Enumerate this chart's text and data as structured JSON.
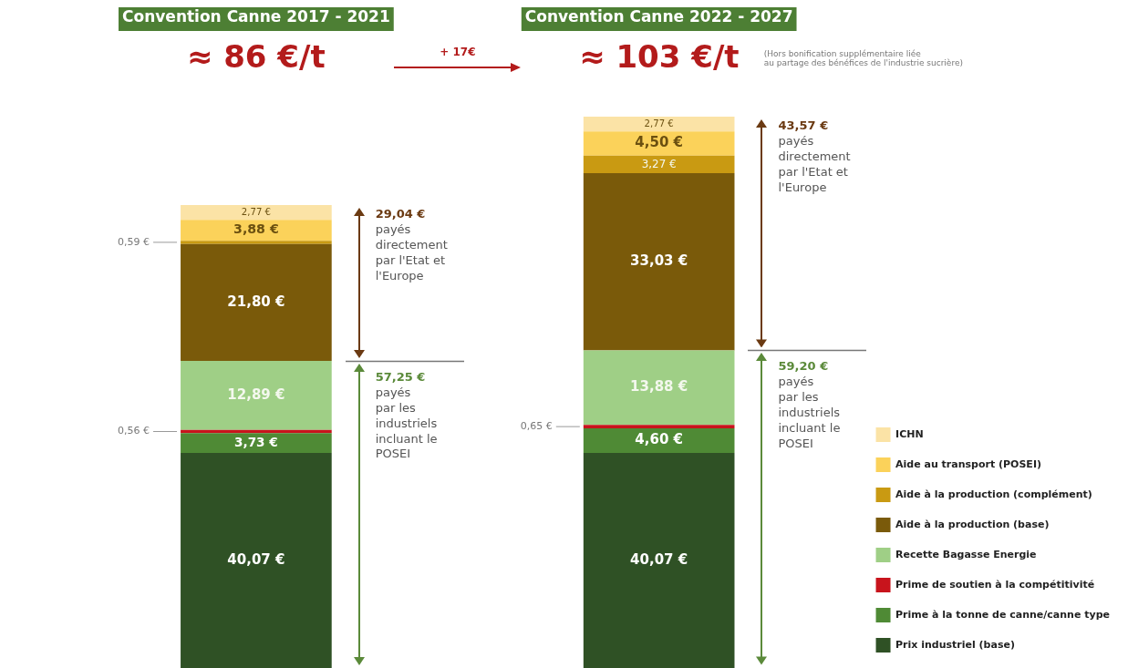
{
  "chart_data": {
    "type": "bar",
    "stacked": true,
    "legend": "bottom right",
    "categories": [
      "Convention Canne 2017 - 2021",
      "Convention Canne 2022 - 2027"
    ],
    "series": [
      {
        "name": "Prix industriel (base)",
        "color": "#2f5125",
        "values": [
          40.07,
          40.07
        ],
        "value_labels": [
          "40,07 €",
          "40,07 €"
        ]
      },
      {
        "name": "Prime à la tonne de canne/canne type",
        "color": "#4f8a35",
        "values": [
          3.73,
          4.6
        ],
        "value_labels": [
          "3,73 €",
          "4,60 €"
        ]
      },
      {
        "name": "Prime de soutien à la compétitivité",
        "color": "#c8141c",
        "values": [
          0.56,
          0.65
        ],
        "value_labels": [
          "0,56 €",
          "0,65 €"
        ]
      },
      {
        "name": "Recette Bagasse Energie",
        "color": "#9fcf86",
        "values": [
          12.89,
          13.88
        ],
        "value_labels": [
          "12,89 €",
          "13,88 €"
        ]
      },
      {
        "name": "Aide à la production (base)",
        "color": "#7a5a0a",
        "values": [
          21.8,
          33.03
        ],
        "value_labels": [
          "21,80 €",
          "33,03 €"
        ]
      },
      {
        "name": "Aide à la production (complément)",
        "color": "#c99a12",
        "values": [
          0.59,
          3.27
        ],
        "value_labels": [
          "0,59 €",
          "3,27 €"
        ]
      },
      {
        "name": "Aide au transport (POSEI)",
        "color": "#fbd25a",
        "values": [
          3.88,
          4.5
        ],
        "value_labels": [
          "3,88 €",
          "4,50 €"
        ]
      },
      {
        "name": "ICHN",
        "color": "#fbe3a6",
        "values": [
          2.77,
          2.77
        ],
        "value_labels": [
          "2,77 €",
          "2,77 €"
        ]
      }
    ],
    "annotations": [
      "≈ 86 €/t",
      "+ 17€",
      "≈ 103 €/t",
      "(Hors bonification supplémentaire liée\nau partage des bénéfices de l'industrie sucrière)",
      "29,04 €\npayés\ndirectement\npar l'Etat et\nl'Europe",
      "57,25 €\npayés\npar les\nindustriels\nincluant le\nPOSEI",
      "43,57 €\npayés\ndirectement\npar l'Etat et\nl'Europe",
      "59,20 €\npayés\npar les\nindustriels\nincluant le\nPOSEI"
    ]
  }
}
